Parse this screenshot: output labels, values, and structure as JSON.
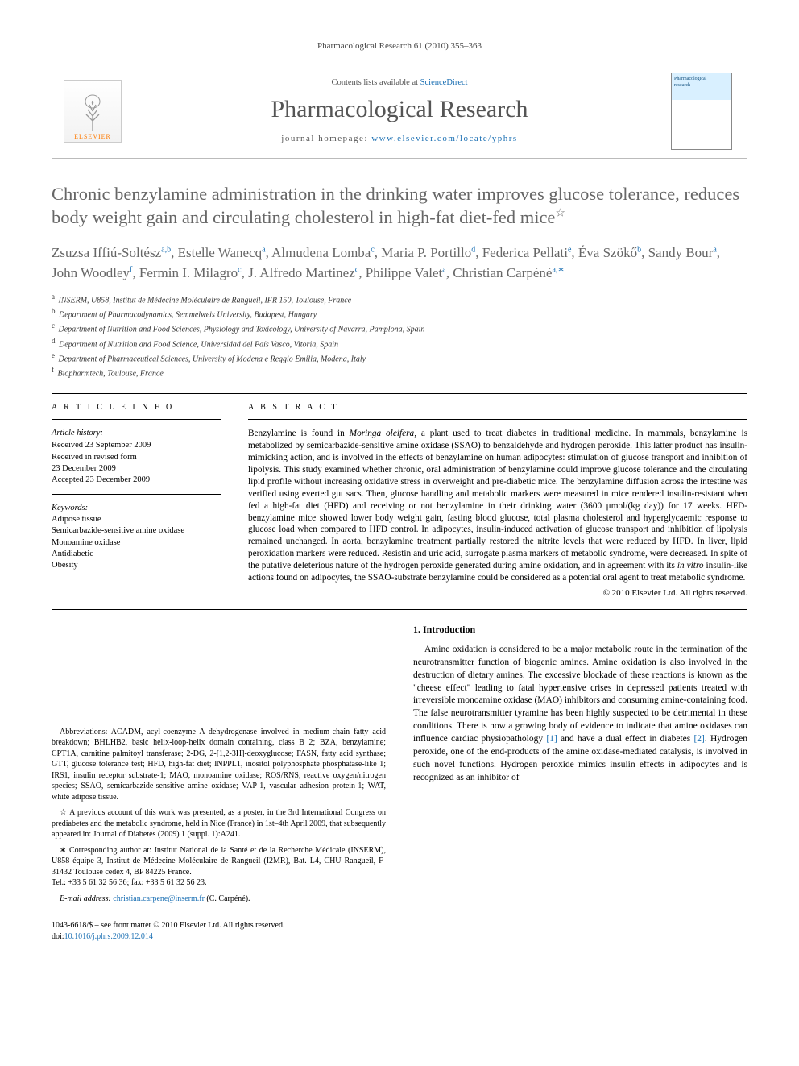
{
  "running_head": "Pharmacological Research 61 (2010) 355–363",
  "masthead": {
    "publisher_logo_text": "ELSEVIER",
    "contents_line_pre": "Contents lists available at ",
    "contents_link": "ScienceDirect",
    "journal_name": "Pharmacological Research",
    "homepage_pre": "journal homepage: ",
    "homepage_url": "www.elsevier.com/locate/yphrs",
    "cover_line1": "Pharmacological",
    "cover_line2": "research"
  },
  "title": "Chronic benzylamine administration in the drinking water improves glucose tolerance, reduces body weight gain and circulating cholesterol in high-fat diet-fed mice",
  "title_note_mark": "☆",
  "authors_html": "Zsuzsa Iffiú-Soltész<sup class='aff-sup'>a,b</sup>, Estelle Wanecq<sup class='aff-sup'>a</sup>, Almudena Lomba<sup class='aff-sup'>c</sup>, Maria P. Portillo<sup class='aff-sup'>d</sup>, Federica Pellati<sup class='aff-sup'>e</sup>, Éva Szökő<sup class='aff-sup'>b</sup>, Sandy Bour<sup class='aff-sup'>a</sup>, John Woodley<sup class='aff-sup'>f</sup>, Fermin I. Milagro<sup class='aff-sup'>c</sup>, J. Alfredo Martinez<sup class='aff-sup'>c</sup>, Philippe Valet<sup class='aff-sup'>a</sup>, Christian Carpéné<sup class='aff-sup'>a,∗</sup>",
  "affiliations": [
    {
      "label": "a",
      "text": "INSERM, U858, Institut de Médecine Moléculaire de Rangueil, IFR 150, Toulouse, France"
    },
    {
      "label": "b",
      "text": "Department of Pharmacodynamics, Semmelweis University, Budapest, Hungary"
    },
    {
      "label": "c",
      "text": "Department of Nutrition and Food Sciences, Physiology and Toxicology, University of Navarra, Pamplona, Spain"
    },
    {
      "label": "d",
      "text": "Department of Nutrition and Food Science, Universidad del País Vasco, Vitoria, Spain"
    },
    {
      "label": "e",
      "text": "Department of Pharmaceutical Sciences, University of Modena e Reggio Emilia, Modena, Italy"
    },
    {
      "label": "f",
      "text": "Biopharmtech, Toulouse, France"
    }
  ],
  "article_info": {
    "heading": "A R T I C L E    I N F O",
    "history_head": "Article history:",
    "received": "Received 23 September 2009",
    "revised1": "Received in revised form",
    "revised2": "23 December 2009",
    "accepted": "Accepted 23 December 2009",
    "keywords_head": "Keywords:",
    "keywords": [
      "Adipose tissue",
      "Semicarbazide-sensitive amine oxidase",
      "Monoamine oxidase",
      "Antidiabetic",
      "Obesity"
    ]
  },
  "abstract": {
    "heading": "A B S T R A C T",
    "text": "Benzylamine is found in Moringa oleifera, a plant used to treat diabetes in traditional medicine. In mammals, benzylamine is metabolized by semicarbazide-sensitive amine oxidase (SSAO) to benzaldehyde and hydrogen peroxide. This latter product has insulin-mimicking action, and is involved in the effects of benzylamine on human adipocytes: stimulation of glucose transport and inhibition of lipolysis. This study examined whether chronic, oral administration of benzylamine could improve glucose tolerance and the circulating lipid profile without increasing oxidative stress in overweight and pre-diabetic mice. The benzylamine diffusion across the intestine was verified using everted gut sacs. Then, glucose handling and metabolic markers were measured in mice rendered insulin-resistant when fed a high-fat diet (HFD) and receiving or not benzylamine in their drinking water (3600 μmol/(kg day)) for 17 weeks. HFD-benzylamine mice showed lower body weight gain, fasting blood glucose, total plasma cholesterol and hyperglycaemic response to glucose load when compared to HFD control. In adipocytes, insulin-induced activation of glucose transport and inhibition of lipolysis remained unchanged. In aorta, benzylamine treatment partially restored the nitrite levels that were reduced by HFD. In liver, lipid peroxidation markers were reduced. Resistin and uric acid, surrogate plasma markers of metabolic syndrome, were decreased. In spite of the putative deleterious nature of the hydrogen peroxide generated during amine oxidation, and in agreement with its in vitro insulin-like actions found on adipocytes, the SSAO-substrate benzylamine could be considered as a potential oral agent to treat metabolic syndrome.",
    "copyright": "© 2010 Elsevier Ltd. All rights reserved."
  },
  "footnotes": {
    "abbrev_label": "Abbreviations:",
    "abbrev_text": " ACADM, acyl-coenzyme A dehydrogenase involved in medium-chain fatty acid breakdown; BHLHB2, basic helix-loop-helix domain containing, class B 2; BZA, benzylamine; CPT1A, carnitine palmitoyl transferase; 2-DG, 2-[1,2-3H]-deoxyglucose; FASN, fatty acid synthase; GTT, glucose tolerance test; HFD, high-fat diet; INPPL1, inositol polyphosphate phosphatase-like 1; IRS1, insulin receptor substrate-1; MAO, monoamine oxidase; ROS/RNS, reactive oxygen/nitrogen species; SSAO, semicarbazide-sensitive amine oxidase; VAP-1, vascular adhesion protein-1; WAT, white adipose tissue.",
    "star_note": "☆ A previous account of this work was presented, as a poster, in the 3rd International Congress on prediabetes and the metabolic syndrome, held in Nice (France) in 1st–4th April 2009, that subsequently appeared in: Journal of Diabetes (2009) 1 (suppl. 1):A241.",
    "corr_label": "∗",
    "corr_text": " Corresponding author at: Institut National de la Santé et de la Recherche Médicale (INSERM), U858 équipe 3, Institut de Médecine Moléculaire de Rangueil (I2MR), Bat. L4, CHU Rangueil, F-31432 Toulouse cedex 4, BP 84225 France.",
    "tel_fax": "Tel.: +33 5 61 32 56 36; fax: +33 5 61 32 56 23.",
    "email_label": "E-mail address:",
    "email": "christian.carpene@inserm.fr",
    "email_who": " (C. Carpéné)."
  },
  "intro": {
    "heading": "1.  Introduction",
    "para": "Amine oxidation is considered to be a major metabolic route in the termination of the neurotransmitter function of biogenic amines. Amine oxidation is also involved in the destruction of dietary amines. The excessive blockade of these reactions is known as the \"cheese effect\" leading to fatal hypertensive crises in depressed patients treated with irreversible monoamine oxidase (MAO) inhibitors and consuming amine-containing food. The false neurotransmitter tyramine has been highly suspected to be detrimental in these conditions. There is now a growing body of evidence to indicate that amine oxidases can influence cardiac physiopathology [1] and have a dual effect in diabetes [2]. Hydrogen peroxide, one of the end-products of the amine oxidase-mediated catalysis, is involved in such novel functions. Hydrogen peroxide mimics insulin effects in adipocytes and is recognized as an inhibitor of",
    "ref1": "[1]",
    "ref2": "[2]"
  },
  "doi": {
    "line1": "1043-6618/$ – see front matter © 2010 Elsevier Ltd. All rights reserved.",
    "line2_pre": "doi:",
    "line2_link": "10.1016/j.phrs.2009.12.014"
  },
  "colors": {
    "link": "#1a6fb3",
    "title_gray": "#666666",
    "logo_orange": "#ff7a00"
  }
}
